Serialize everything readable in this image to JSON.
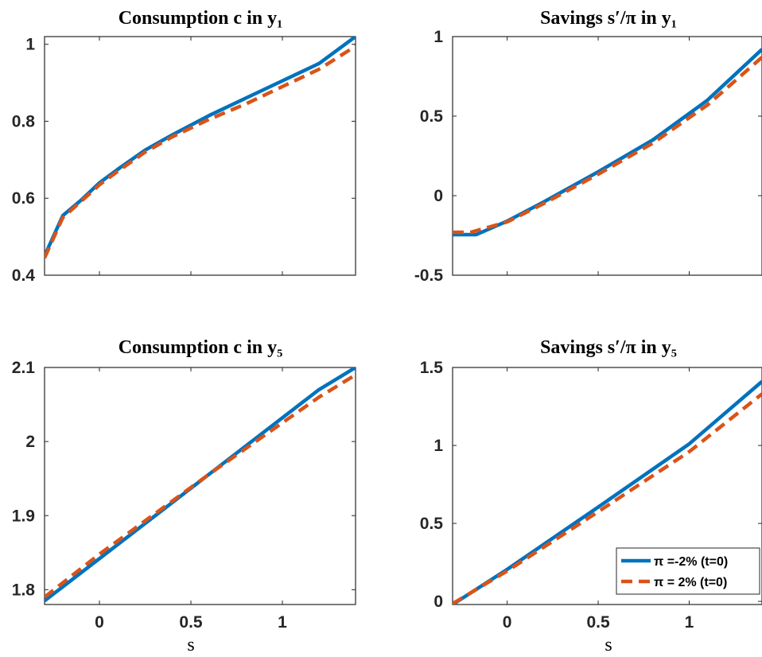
{
  "chart_data": [
    {
      "type": "line",
      "title": "Consumption c in y₁",
      "xlabel": "",
      "ylabel": "",
      "xlim": [
        -0.3,
        1.4
      ],
      "ylim": [
        0.4,
        1.02
      ],
      "xticks": [
        "0",
        "0.5",
        "1"
      ],
      "yticks": [
        "0.4",
        "0.6",
        "0.8",
        "1"
      ],
      "series": [
        {
          "style": "solid",
          "color": "#0072BD",
          "x": [
            -0.3,
            -0.2,
            -0.1,
            0.0,
            0.1,
            0.25,
            0.4,
            0.6,
            0.8,
            1.0,
            1.2,
            1.4
          ],
          "y": [
            0.45,
            0.555,
            0.595,
            0.64,
            0.675,
            0.725,
            0.765,
            0.815,
            0.86,
            0.905,
            0.95,
            1.02
          ]
        },
        {
          "style": "dashed",
          "color": "#D95319",
          "x": [
            -0.3,
            -0.2,
            -0.1,
            0.0,
            0.1,
            0.25,
            0.4,
            0.6,
            0.8,
            1.0,
            1.2,
            1.4
          ],
          "y": [
            0.445,
            0.55,
            0.592,
            0.635,
            0.67,
            0.72,
            0.76,
            0.805,
            0.845,
            0.89,
            0.935,
            0.995
          ]
        }
      ]
    },
    {
      "type": "line",
      "title": "Savings s′/π in y₁",
      "xlabel": "",
      "ylabel": "",
      "xlim": [
        -0.3,
        1.4
      ],
      "ylim": [
        -0.5,
        1.0
      ],
      "xticks": [
        "0",
        "0.5",
        "1"
      ],
      "yticks": [
        "-0.5",
        "0",
        "0.5",
        "1"
      ],
      "series": [
        {
          "style": "solid",
          "color": "#0072BD",
          "x": [
            -0.3,
            -0.17,
            0.0,
            0.2,
            0.5,
            0.8,
            1.1,
            1.4
          ],
          "y": [
            -0.245,
            -0.245,
            -0.16,
            -0.04,
            0.15,
            0.35,
            0.6,
            0.92
          ]
        },
        {
          "style": "dashed",
          "color": "#D95319",
          "x": [
            -0.3,
            -0.2,
            0.0,
            0.2,
            0.5,
            0.8,
            1.1,
            1.4
          ],
          "y": [
            -0.23,
            -0.23,
            -0.165,
            -0.05,
            0.135,
            0.33,
            0.57,
            0.87
          ]
        }
      ]
    },
    {
      "type": "line",
      "title": "Consumption c in y₅",
      "xlabel": "s",
      "ylabel": "",
      "xlim": [
        -0.3,
        1.4
      ],
      "ylim": [
        1.78,
        2.1
      ],
      "xticks": [
        "0",
        "0.5",
        "1"
      ],
      "yticks": [
        "1.8",
        "1.9",
        "2",
        "2.1"
      ],
      "series": [
        {
          "style": "solid",
          "color": "#0072BD",
          "x": [
            -0.3,
            0.0,
            0.3,
            0.6,
            0.9,
            1.2,
            1.4
          ],
          "y": [
            1.785,
            1.842,
            1.899,
            1.956,
            2.013,
            2.07,
            2.1
          ]
        },
        {
          "style": "dashed",
          "color": "#D95319",
          "x": [
            -0.3,
            0.0,
            0.3,
            0.6,
            0.9,
            1.2,
            1.4
          ],
          "y": [
            1.79,
            1.848,
            1.902,
            1.956,
            2.008,
            2.06,
            2.09
          ]
        }
      ]
    },
    {
      "type": "line",
      "title": "Savings s′/π in y₅",
      "xlabel": "s",
      "ylabel": "",
      "xlim": [
        -0.3,
        1.4
      ],
      "ylim": [
        -0.02,
        1.5
      ],
      "xticks": [
        "0",
        "0.5",
        "1"
      ],
      "yticks": [
        "0",
        "0.5",
        "1",
        "1.5"
      ],
      "legend": {
        "location": "bottom-right",
        "entries": [
          "π =-2% (t=0)",
          "π = 2% (t=0)"
        ]
      },
      "series": [
        {
          "name": "π =-2% (t=0)",
          "style": "solid",
          "color": "#0072BD",
          "x": [
            -0.3,
            0.0,
            0.5,
            1.0,
            1.4
          ],
          "y": [
            -0.02,
            0.205,
            0.605,
            1.01,
            1.41
          ]
        },
        {
          "name": "π = 2% (t=0)",
          "style": "dashed",
          "color": "#D95319",
          "x": [
            -0.3,
            0.0,
            0.5,
            1.0,
            1.4
          ],
          "y": [
            -0.015,
            0.195,
            0.575,
            0.96,
            1.33
          ]
        }
      ]
    }
  ]
}
